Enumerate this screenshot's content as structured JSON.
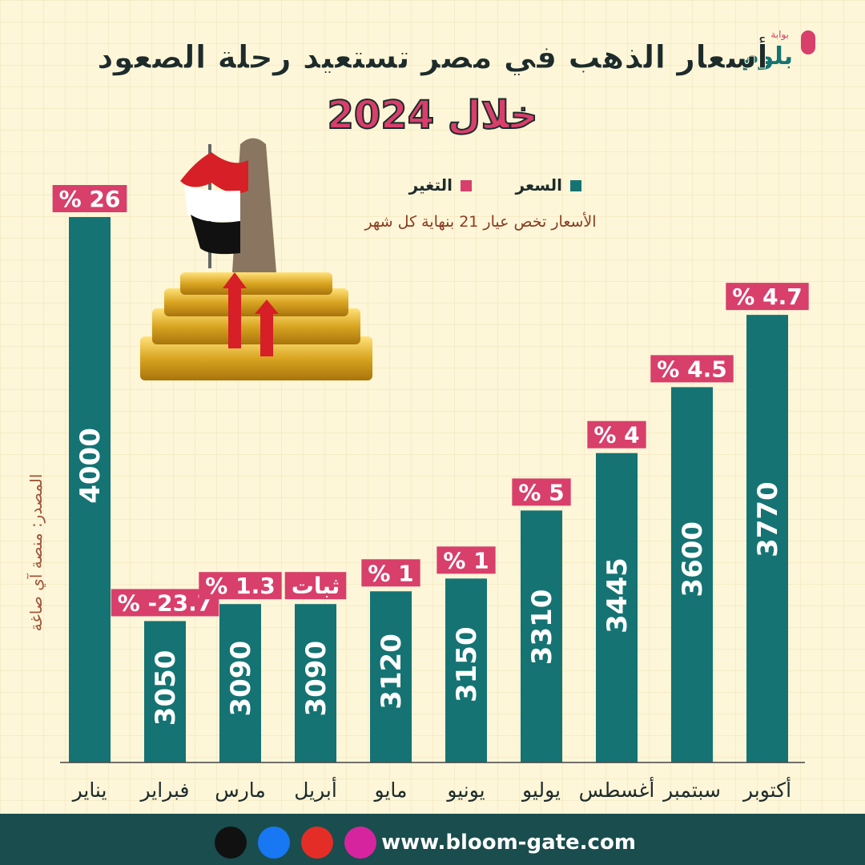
{
  "header": {
    "logo": "بلوم",
    "logo_tag": "بوابة"
  },
  "chart_data": {
    "type": "bar",
    "title": "أسعار الذهب في مصر تستعيد رحلة الصعود",
    "subtitle": "خلال 2024",
    "note": "الأسعار تخص عيار 21 بنهاية كل شهر",
    "source": "المصدر: منصة آي صاغة",
    "categories": [
      "يناير",
      "فبراير",
      "مارس",
      "أبريل",
      "مايو",
      "يونيو",
      "يوليو",
      "أغسطس",
      "سبتمبر",
      "أكتوبر"
    ],
    "series": [
      {
        "name": "السعر",
        "color": "#157373",
        "values": [
          4000,
          3050,
          3090,
          3090,
          3120,
          3150,
          3310,
          3445,
          3600,
          3770
        ]
      },
      {
        "name": "التغير",
        "color": "#d83f6b",
        "values": [
          26,
          -23.7,
          1.3,
          0,
          1,
          1,
          5,
          4,
          4.5,
          4.7
        ],
        "value_labels": [
          "% 26",
          "% -23.7",
          "% 1.3",
          "ثبات",
          "% 1",
          "% 1",
          "% 5",
          "% 4",
          "% 4.5",
          "% 4.7"
        ]
      }
    ]
  },
  "footer": {
    "url": "www.bloom-gate.com"
  }
}
